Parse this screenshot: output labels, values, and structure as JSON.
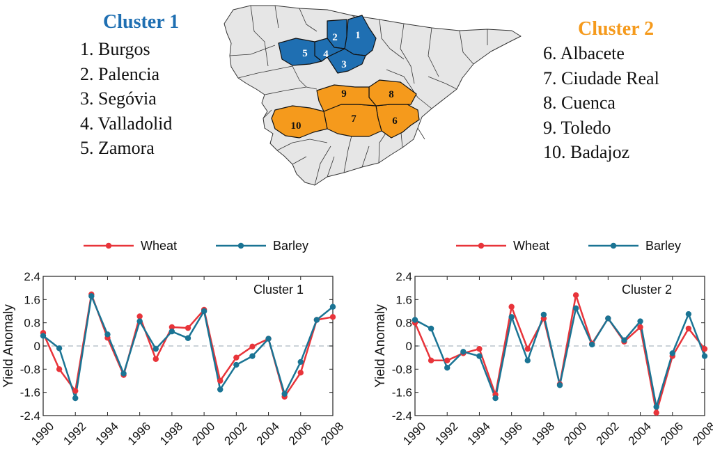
{
  "map": {
    "cluster1": {
      "title": "Cluster 1",
      "color": "#1f6fb2",
      "items": [
        "1. Burgos",
        "2. Palencia",
        "3. Segóvia",
        "4. Valladolid",
        "5. Zamora"
      ],
      "region_labels": [
        "1",
        "2",
        "3",
        "4",
        "5"
      ]
    },
    "cluster2": {
      "title": "Cluster 2",
      "color": "#f59a1c",
      "items": [
        "6. Albacete",
        "7. Ciudade Real",
        "8. Cuenca",
        "9. Toledo",
        "10. Badajoz"
      ],
      "region_labels": [
        "6",
        "7",
        "8",
        "9",
        "10"
      ]
    },
    "land_color": "#e6e6e6"
  },
  "chart_data": [
    {
      "type": "line",
      "title": "Cluster 1",
      "xlabel": "",
      "ylabel": "Yield Anomaly",
      "x": [
        1990,
        1991,
        1992,
        1993,
        1994,
        1995,
        1996,
        1997,
        1998,
        1999,
        2000,
        2001,
        2002,
        2003,
        2004,
        2005,
        2006,
        2007,
        2008
      ],
      "xticks": [
        "1990",
        "1992",
        "1994",
        "1996",
        "1998",
        "2000",
        "2002",
        "2004",
        "2006",
        "2008"
      ],
      "yticks": [
        "-2.4",
        "-1.6",
        "-0.8",
        "0",
        "0.8",
        "1.6",
        "2.4"
      ],
      "xlim": [
        1990,
        2008
      ],
      "ylim": [
        -2.4,
        2.4
      ],
      "legend_position": "top",
      "series": [
        {
          "name": "Wheat",
          "color": "#e8343a",
          "values": [
            0.45,
            -0.8,
            -1.55,
            1.78,
            0.28,
            -1.0,
            1.02,
            -0.45,
            0.65,
            0.62,
            1.25,
            -1.2,
            -0.4,
            -0.02,
            0.25,
            -1.75,
            -0.92,
            0.9,
            1.0
          ]
        },
        {
          "name": "Barley",
          "color": "#1a7494",
          "values": [
            0.35,
            -0.08,
            -1.8,
            1.72,
            0.4,
            -0.95,
            0.85,
            -0.1,
            0.5,
            0.27,
            1.2,
            -1.5,
            -0.65,
            -0.35,
            0.25,
            -1.65,
            -0.55,
            0.9,
            1.35
          ]
        }
      ]
    },
    {
      "type": "line",
      "title": "Cluster 2",
      "xlabel": "",
      "ylabel": "Yield Anomaly",
      "x": [
        1990,
        1991,
        1992,
        1993,
        1994,
        1995,
        1996,
        1997,
        1998,
        1999,
        2000,
        2001,
        2002,
        2003,
        2004,
        2005,
        2006,
        2007,
        2008
      ],
      "xticks": [
        "1990",
        "1992",
        "1994",
        "1996",
        "1998",
        "2000",
        "2002",
        "2004",
        "2006",
        "2008"
      ],
      "yticks": [
        "-2.4",
        "-1.6",
        "-0.8",
        "0",
        "0.8",
        "1.6",
        "2.4"
      ],
      "xlim": [
        1990,
        2008
      ],
      "ylim": [
        -2.4,
        2.4
      ],
      "legend_position": "top",
      "series": [
        {
          "name": "Wheat",
          "color": "#e8343a",
          "values": [
            0.8,
            -0.5,
            -0.5,
            -0.25,
            -0.1,
            -1.68,
            1.35,
            -0.1,
            0.95,
            -1.32,
            1.75,
            0.08,
            0.95,
            0.15,
            0.65,
            -2.3,
            -0.35,
            0.6,
            -0.1
          ]
        },
        {
          "name": "Barley",
          "color": "#1a7494",
          "values": [
            0.9,
            0.6,
            -0.75,
            -0.2,
            -0.35,
            -1.8,
            1.0,
            -0.5,
            1.08,
            -1.35,
            1.3,
            0.05,
            0.95,
            0.2,
            0.85,
            -2.1,
            -0.25,
            1.1,
            -0.35
          ]
        }
      ]
    }
  ]
}
